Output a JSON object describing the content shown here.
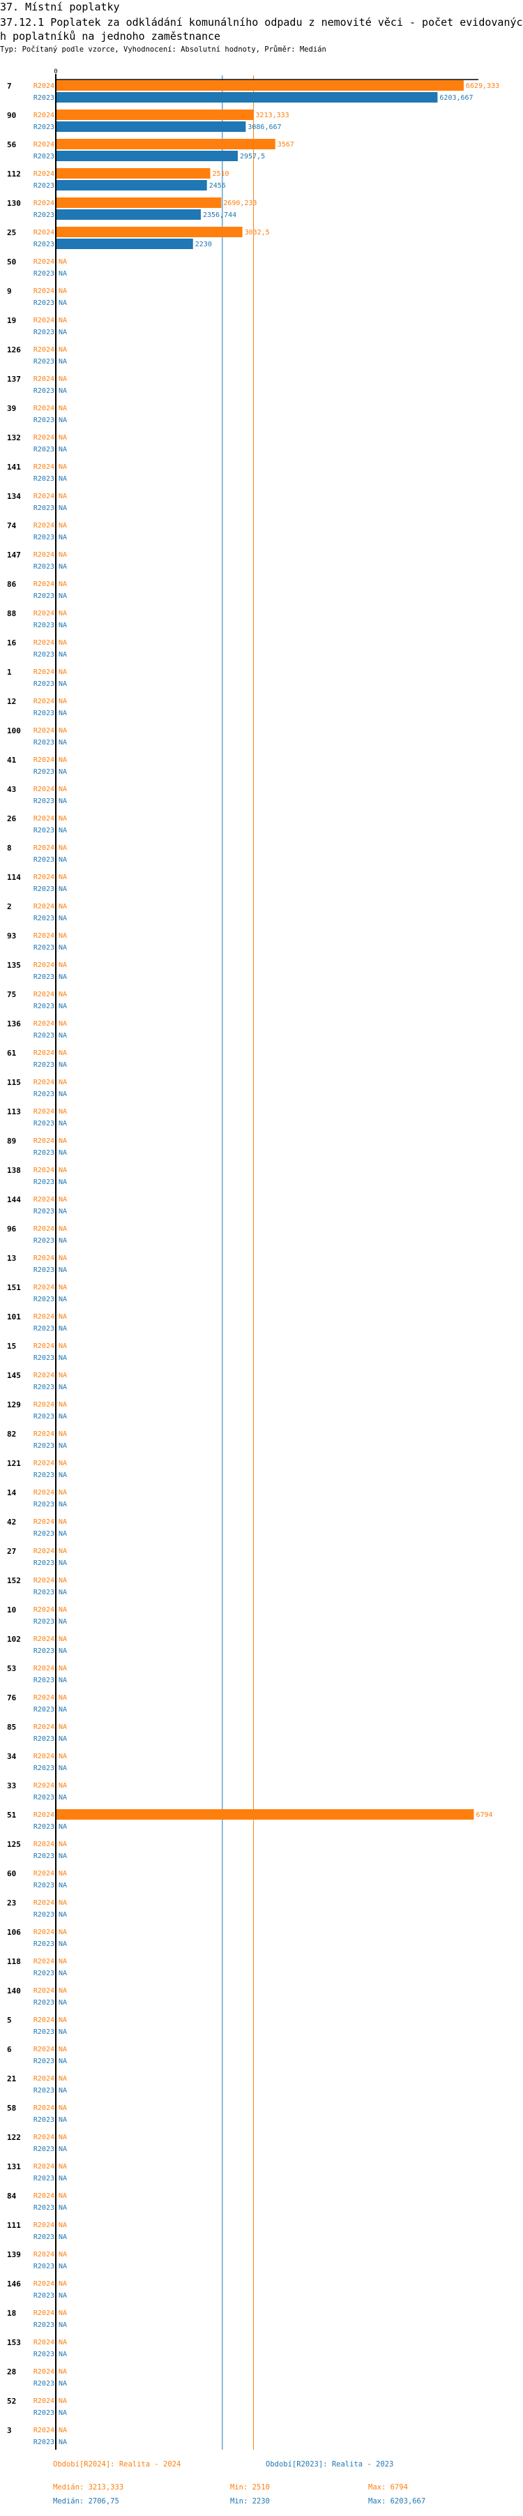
{
  "header": {
    "section": "37. Místní poplatky",
    "title": "37.12.1 Poplatek za odkládání komunálního odpadu z nemovité věci - počet evidovaných poplatníků na jednoho zaměstnance",
    "subtitle": "Typ: Počítaný podle vzorce, Vyhodnocení: Absolutní hodnoty, Průměr: Medián"
  },
  "colors": {
    "R2024": "#ff7f0e",
    "R2023": "#1f77b4",
    "axis": "#000000"
  },
  "legend": {
    "r2024": {
      "label": "Období[R2024]: Realita - 2024",
      "median": "Medián: 3213,333",
      "min": "Min: 2510",
      "max": "Max: 6794"
    },
    "r2023": {
      "label": "Období[R2023]: Realita - 2023",
      "median": "Medián: 2706,75",
      "min": "Min: 2230",
      "max": "Max: 6203,667"
    }
  },
  "chart_data": {
    "type": "bar",
    "orientation": "horizontal",
    "x_tick_labels": [
      "0"
    ],
    "na_label": "NA",
    "categories": [
      "7",
      "90",
      "56",
      "112",
      "130",
      "25",
      "50",
      "9",
      "19",
      "126",
      "137",
      "39",
      "132",
      "141",
      "134",
      "74",
      "147",
      "86",
      "88",
      "16",
      "1",
      "12",
      "100",
      "41",
      "43",
      "26",
      "8",
      "114",
      "2",
      "93",
      "135",
      "75",
      "136",
      "61",
      "115",
      "113",
      "89",
      "138",
      "144",
      "96",
      "13",
      "151",
      "101",
      "15",
      "145",
      "129",
      "82",
      "121",
      "14",
      "42",
      "27",
      "152",
      "10",
      "102",
      "53",
      "76",
      "85",
      "34",
      "33",
      "51",
      "125",
      "60",
      "23",
      "106",
      "118",
      "140",
      "5",
      "6",
      "21",
      "58",
      "122",
      "131",
      "84",
      "111",
      "139",
      "146",
      "18",
      "153",
      "28",
      "52",
      "3"
    ],
    "series": [
      {
        "name": "R2024",
        "color": "#ff7f0e",
        "median": 3213.333,
        "values": [
          6629.333,
          3213.333,
          3567,
          2510,
          2690.233,
          3032.5,
          null,
          null,
          null,
          null,
          null,
          null,
          null,
          null,
          null,
          null,
          null,
          null,
          null,
          null,
          null,
          null,
          null,
          null,
          null,
          null,
          null,
          null,
          null,
          null,
          null,
          null,
          null,
          null,
          null,
          null,
          null,
          null,
          null,
          null,
          null,
          null,
          null,
          null,
          null,
          null,
          null,
          null,
          null,
          null,
          null,
          null,
          null,
          null,
          null,
          null,
          null,
          null,
          null,
          6794,
          null,
          null,
          null,
          null,
          null,
          null,
          null,
          null,
          null,
          null,
          null,
          null,
          null,
          null,
          null,
          null,
          null,
          null,
          null,
          null,
          null
        ]
      },
      {
        "name": "R2023",
        "color": "#1f77b4",
        "median": 2706.75,
        "values": [
          6203.667,
          3086.667,
          2957.5,
          2456,
          2356.744,
          2230,
          null,
          null,
          null,
          null,
          null,
          null,
          null,
          null,
          null,
          null,
          null,
          null,
          null,
          null,
          null,
          null,
          null,
          null,
          null,
          null,
          null,
          null,
          null,
          null,
          null,
          null,
          null,
          null,
          null,
          null,
          null,
          null,
          null,
          null,
          null,
          null,
          null,
          null,
          null,
          null,
          null,
          null,
          null,
          null,
          null,
          null,
          null,
          null,
          null,
          null,
          null,
          null,
          null,
          null,
          null,
          null,
          null,
          null,
          null,
          null,
          null,
          null,
          null,
          null,
          null,
          null,
          null,
          null,
          null,
          null,
          null,
          null,
          null,
          null,
          null
        ]
      }
    ],
    "xlim": [
      0,
      6794
    ],
    "grid": false,
    "legend_placement": "bottom"
  }
}
